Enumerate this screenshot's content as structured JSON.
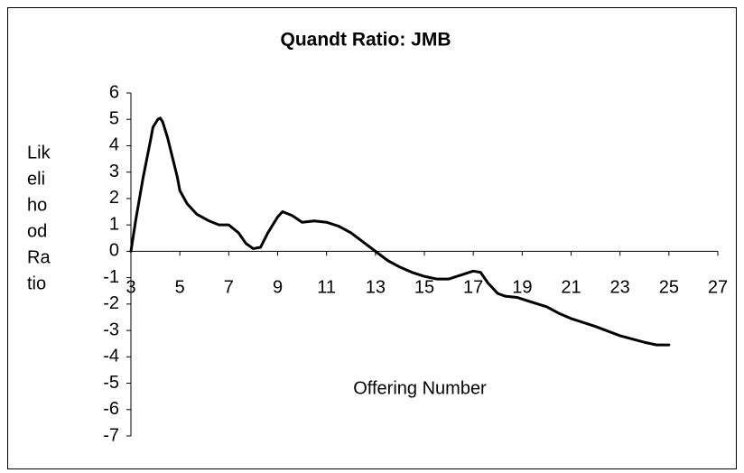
{
  "chart_data": {
    "type": "line",
    "title": "Quandt Ratio: JMB",
    "ylabel": [
      "Lik",
      "eli",
      "ho",
      "od",
      "Ra",
      "tio"
    ],
    "xlabel": "Offering Number",
    "xlim": [
      3,
      27
    ],
    "xticks": [
      3,
      5,
      7,
      9,
      11,
      13,
      15,
      17,
      19,
      21,
      23,
      25,
      27
    ],
    "ylim": [
      -7,
      6
    ],
    "yticks": [
      -7,
      -6,
      -5,
      -4,
      -3,
      -2,
      -1,
      0,
      1,
      2,
      3,
      4,
      5,
      6
    ],
    "grid": false,
    "x": [
      3,
      3.2,
      3.5,
      3.8,
      3.9,
      4.1,
      4.2,
      4.3,
      4.5,
      4.9,
      5,
      5.3,
      5.7,
      6.2,
      6.6,
      7,
      7.4,
      7.7,
      8,
      8.3,
      8.6,
      9,
      9.2,
      9.6,
      10,
      10.5,
      11,
      11.5,
      12,
      12.5,
      13,
      13.5,
      14,
      14.5,
      15,
      15.5,
      16,
      16.5,
      17,
      17.3,
      17.6,
      18,
      18.3,
      18.8,
      19.3,
      20,
      20.5,
      21,
      22,
      23,
      24,
      24.5,
      25
    ],
    "series": [
      {
        "color": "#000000",
        "values": [
          0,
          1.2,
          2.8,
          4.2,
          4.7,
          5.0,
          5.05,
          4.9,
          4.3,
          2.8,
          2.3,
          1.8,
          1.4,
          1.15,
          1.0,
          1.0,
          0.7,
          0.3,
          0.1,
          0.15,
          0.7,
          1.3,
          1.5,
          1.35,
          1.1,
          1.15,
          1.1,
          0.95,
          0.7,
          0.35,
          0.0,
          -0.35,
          -0.6,
          -0.8,
          -0.95,
          -1.05,
          -1.05,
          -0.9,
          -0.75,
          -0.8,
          -1.2,
          -1.6,
          -1.7,
          -1.75,
          -1.9,
          -2.1,
          -2.35,
          -2.55,
          -2.85,
          -3.2,
          -3.45,
          -3.55,
          -3.55
        ]
      }
    ]
  }
}
